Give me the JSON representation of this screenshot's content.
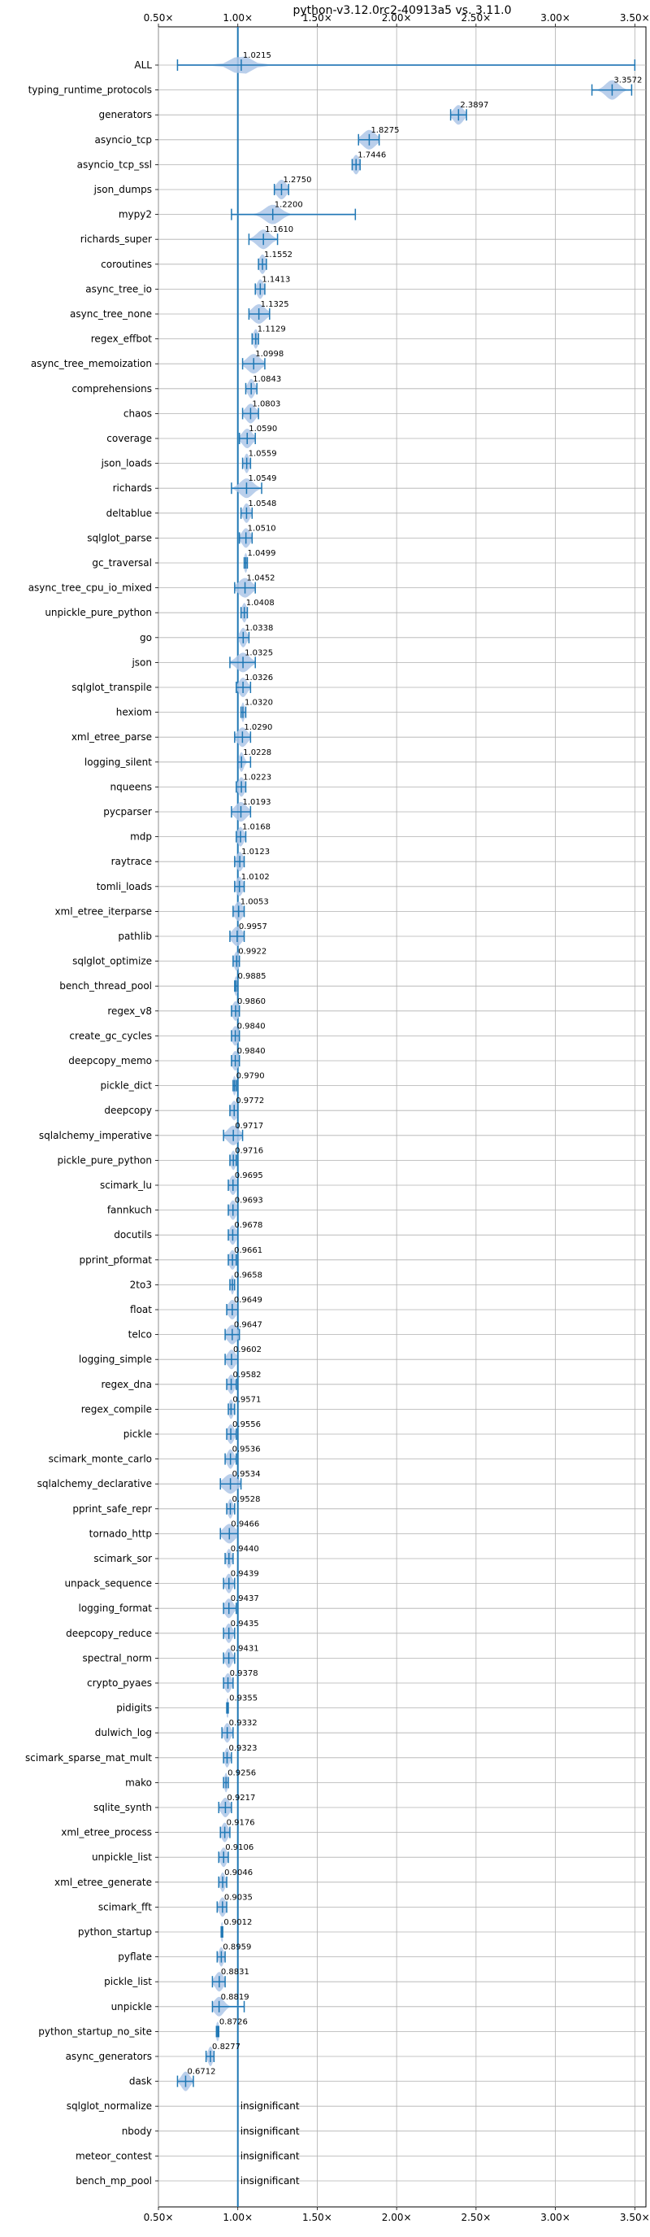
{
  "chart_data": {
    "type": "violin",
    "title": "python-v3.12.0rc2-40913a5 vs. 3.11.0",
    "xlim": [
      0.5,
      3.57
    ],
    "x_ticks": [
      0.5,
      1.0,
      1.5,
      2.0,
      2.5,
      3.0,
      3.5
    ],
    "x_tick_labels": [
      "0.50×",
      "1.00×",
      "1.50×",
      "2.00×",
      "2.50×",
      "3.00×",
      "3.50×"
    ],
    "reference_line": 1.0,
    "grid": true,
    "colors": {
      "line": "#1f77b4",
      "fill": "#aec7e8",
      "grid": "#b0b0b0"
    },
    "benchmarks": [
      {
        "name": "ALL",
        "label": "1.0215",
        "center": 1.0215,
        "min": 0.62,
        "max": 3.5,
        "spread": 0.06
      },
      {
        "name": "typing_runtime_protocols",
        "label": "3.3572",
        "center": 3.3572,
        "min": 3.23,
        "max": 3.48,
        "spread": 0.04
      },
      {
        "name": "generators",
        "label": "2.3897",
        "center": 2.3897,
        "min": 2.34,
        "max": 2.44,
        "spread": 0.03
      },
      {
        "name": "asyncio_tcp",
        "label": "1.8275",
        "center": 1.8275,
        "min": 1.76,
        "max": 1.89,
        "spread": 0.04
      },
      {
        "name": "asyncio_tcp_ssl",
        "label": "1.7446",
        "center": 1.7446,
        "min": 1.72,
        "max": 1.77,
        "spread": 0.02
      },
      {
        "name": "json_dumps",
        "label": "1.2750",
        "center": 1.275,
        "min": 1.23,
        "max": 1.32,
        "spread": 0.03
      },
      {
        "name": "mypy2",
        "label": "1.2200",
        "center": 1.22,
        "min": 0.96,
        "max": 1.74,
        "spread": 0.05
      },
      {
        "name": "richards_super",
        "label": "1.1610",
        "center": 1.161,
        "min": 1.07,
        "max": 1.25,
        "spread": 0.04
      },
      {
        "name": "coroutines",
        "label": "1.1552",
        "center": 1.1552,
        "min": 1.13,
        "max": 1.18,
        "spread": 0.02
      },
      {
        "name": "async_tree_io",
        "label": "1.1413",
        "center": 1.1413,
        "min": 1.11,
        "max": 1.17,
        "spread": 0.02
      },
      {
        "name": "async_tree_none",
        "label": "1.1325",
        "center": 1.1325,
        "min": 1.07,
        "max": 1.2,
        "spread": 0.04
      },
      {
        "name": "regex_effbot",
        "label": "1.1129",
        "center": 1.1129,
        "min": 1.09,
        "max": 1.13,
        "spread": 0.015
      },
      {
        "name": "async_tree_memoization",
        "label": "1.0998",
        "center": 1.0998,
        "min": 1.03,
        "max": 1.17,
        "spread": 0.04
      },
      {
        "name": "comprehensions",
        "label": "1.0843",
        "center": 1.0843,
        "min": 1.05,
        "max": 1.12,
        "spread": 0.02
      },
      {
        "name": "chaos",
        "label": "1.0803",
        "center": 1.0803,
        "min": 1.03,
        "max": 1.13,
        "spread": 0.03
      },
      {
        "name": "coverage",
        "label": "1.0590",
        "center": 1.059,
        "min": 1.01,
        "max": 1.11,
        "spread": 0.03
      },
      {
        "name": "json_loads",
        "label": "1.0559",
        "center": 1.0559,
        "min": 1.03,
        "max": 1.08,
        "spread": 0.015
      },
      {
        "name": "richards",
        "label": "1.0549",
        "center": 1.0549,
        "min": 0.96,
        "max": 1.15,
        "spread": 0.04
      },
      {
        "name": "deltablue",
        "label": "1.0548",
        "center": 1.0548,
        "min": 1.02,
        "max": 1.09,
        "spread": 0.02
      },
      {
        "name": "sqlglot_parse",
        "label": "1.0510",
        "center": 1.051,
        "min": 1.01,
        "max": 1.09,
        "spread": 0.025
      },
      {
        "name": "gc_traversal",
        "label": "1.0499",
        "center": 1.0499,
        "min": 1.04,
        "max": 1.06,
        "spread": 0.008
      },
      {
        "name": "async_tree_cpu_io_mixed",
        "label": "1.0452",
        "center": 1.0452,
        "min": 0.98,
        "max": 1.11,
        "spread": 0.04
      },
      {
        "name": "unpickle_pure_python",
        "label": "1.0408",
        "center": 1.0408,
        "min": 1.02,
        "max": 1.06,
        "spread": 0.015
      },
      {
        "name": "go",
        "label": "1.0338",
        "center": 1.0338,
        "min": 1.0,
        "max": 1.07,
        "spread": 0.02
      },
      {
        "name": "json",
        "label": "1.0325",
        "center": 1.0325,
        "min": 0.95,
        "max": 1.11,
        "spread": 0.04
      },
      {
        "name": "sqlglot_transpile",
        "label": "1.0326",
        "center": 1.0326,
        "min": 0.99,
        "max": 1.08,
        "spread": 0.025
      },
      {
        "name": "hexiom",
        "label": "1.0320",
        "center": 1.032,
        "min": 1.02,
        "max": 1.05,
        "spread": 0.01
      },
      {
        "name": "xml_etree_parse",
        "label": "1.0290",
        "center": 1.029,
        "min": 0.98,
        "max": 1.08,
        "spread": 0.03
      },
      {
        "name": "logging_silent",
        "label": "1.0228",
        "center": 1.0228,
        "min": 1.0,
        "max": 1.08,
        "spread": 0.015
      },
      {
        "name": "nqueens",
        "label": "1.0223",
        "center": 1.0223,
        "min": 0.99,
        "max": 1.05,
        "spread": 0.02
      },
      {
        "name": "pycparser",
        "label": "1.0193",
        "center": 1.0193,
        "min": 0.96,
        "max": 1.08,
        "spread": 0.035
      },
      {
        "name": "mdp",
        "label": "1.0168",
        "center": 1.0168,
        "min": 0.99,
        "max": 1.05,
        "spread": 0.02
      },
      {
        "name": "raytrace",
        "label": "1.0123",
        "center": 1.0123,
        "min": 0.98,
        "max": 1.04,
        "spread": 0.02
      },
      {
        "name": "tomli_loads",
        "label": "1.0102",
        "center": 1.0102,
        "min": 0.98,
        "max": 1.04,
        "spread": 0.02
      },
      {
        "name": "xml_etree_iterparse",
        "label": "1.0053",
        "center": 1.0053,
        "min": 0.97,
        "max": 1.04,
        "spread": 0.025
      },
      {
        "name": "pathlib",
        "label": "0.9957",
        "center": 0.9957,
        "min": 0.95,
        "max": 1.04,
        "spread": 0.03
      },
      {
        "name": "sqlglot_optimize",
        "label": "0.9922",
        "center": 0.9922,
        "min": 0.97,
        "max": 1.01,
        "spread": 0.015
      },
      {
        "name": "bench_thread_pool",
        "label": "0.9885",
        "center": 0.9885,
        "min": 0.98,
        "max": 1.0,
        "spread": 0.008
      },
      {
        "name": "regex_v8",
        "label": "0.9860",
        "center": 0.986,
        "min": 0.96,
        "max": 1.01,
        "spread": 0.02
      },
      {
        "name": "create_gc_cycles",
        "label": "0.9840",
        "center": 0.984,
        "min": 0.96,
        "max": 1.01,
        "spread": 0.02
      },
      {
        "name": "deepcopy_memo",
        "label": "0.9840",
        "center": 0.984,
        "min": 0.96,
        "max": 1.01,
        "spread": 0.02
      },
      {
        "name": "pickle_dict",
        "label": "0.9790",
        "center": 0.979,
        "min": 0.97,
        "max": 0.99,
        "spread": 0.008
      },
      {
        "name": "deepcopy",
        "label": "0.9772",
        "center": 0.9772,
        "min": 0.95,
        "max": 1.0,
        "spread": 0.02
      },
      {
        "name": "sqlalchemy_imperative",
        "label": "0.9717",
        "center": 0.9717,
        "min": 0.91,
        "max": 1.03,
        "spread": 0.035
      },
      {
        "name": "pickle_pure_python",
        "label": "0.9716",
        "center": 0.9716,
        "min": 0.95,
        "max": 0.99,
        "spread": 0.015
      },
      {
        "name": "scimark_lu",
        "label": "0.9695",
        "center": 0.9695,
        "min": 0.94,
        "max": 1.0,
        "spread": 0.02
      },
      {
        "name": "fannkuch",
        "label": "0.9693",
        "center": 0.9693,
        "min": 0.94,
        "max": 1.0,
        "spread": 0.02
      },
      {
        "name": "docutils",
        "label": "0.9678",
        "center": 0.9678,
        "min": 0.94,
        "max": 1.0,
        "spread": 0.02
      },
      {
        "name": "pprint_pformat",
        "label": "0.9661",
        "center": 0.9661,
        "min": 0.94,
        "max": 0.99,
        "spread": 0.02
      },
      {
        "name": "2to3",
        "label": "0.9658",
        "center": 0.9658,
        "min": 0.95,
        "max": 0.98,
        "spread": 0.008
      },
      {
        "name": "float",
        "label": "0.9649",
        "center": 0.9649,
        "min": 0.93,
        "max": 1.0,
        "spread": 0.025
      },
      {
        "name": "telco",
        "label": "0.9647",
        "center": 0.9647,
        "min": 0.92,
        "max": 1.01,
        "spread": 0.03
      },
      {
        "name": "logging_simple",
        "label": "0.9602",
        "center": 0.9602,
        "min": 0.92,
        "max": 1.0,
        "spread": 0.025
      },
      {
        "name": "regex_dna",
        "label": "0.9582",
        "center": 0.9582,
        "min": 0.93,
        "max": 0.99,
        "spread": 0.02
      },
      {
        "name": "regex_compile",
        "label": "0.9571",
        "center": 0.9571,
        "min": 0.94,
        "max": 0.98,
        "spread": 0.015
      },
      {
        "name": "pickle",
        "label": "0.9556",
        "center": 0.9556,
        "min": 0.93,
        "max": 0.99,
        "spread": 0.02
      },
      {
        "name": "scimark_monte_carlo",
        "label": "0.9536",
        "center": 0.9536,
        "min": 0.92,
        "max": 0.99,
        "spread": 0.02
      },
      {
        "name": "sqlalchemy_declarative",
        "label": "0.9534",
        "center": 0.9534,
        "min": 0.89,
        "max": 1.02,
        "spread": 0.04
      },
      {
        "name": "pprint_safe_repr",
        "label": "0.9528",
        "center": 0.9528,
        "min": 0.93,
        "max": 0.98,
        "spread": 0.015
      },
      {
        "name": "tornado_http",
        "label": "0.9466",
        "center": 0.9466,
        "min": 0.89,
        "max": 1.0,
        "spread": 0.035
      },
      {
        "name": "scimark_sor",
        "label": "0.9440",
        "center": 0.944,
        "min": 0.92,
        "max": 0.97,
        "spread": 0.015
      },
      {
        "name": "unpack_sequence",
        "label": "0.9439",
        "center": 0.9439,
        "min": 0.91,
        "max": 0.98,
        "spread": 0.02
      },
      {
        "name": "logging_format",
        "label": "0.9437",
        "center": 0.9437,
        "min": 0.91,
        "max": 0.99,
        "spread": 0.025
      },
      {
        "name": "deepcopy_reduce",
        "label": "0.9435",
        "center": 0.9435,
        "min": 0.91,
        "max": 0.98,
        "spread": 0.02
      },
      {
        "name": "spectral_norm",
        "label": "0.9431",
        "center": 0.9431,
        "min": 0.91,
        "max": 0.98,
        "spread": 0.02
      },
      {
        "name": "crypto_pyaes",
        "label": "0.9378",
        "center": 0.9378,
        "min": 0.91,
        "max": 0.97,
        "spread": 0.02
      },
      {
        "name": "pidigits",
        "label": "0.9355",
        "center": 0.9355,
        "min": 0.93,
        "max": 0.94,
        "spread": 0.005
      },
      {
        "name": "dulwich_log",
        "label": "0.9332",
        "center": 0.9332,
        "min": 0.9,
        "max": 0.97,
        "spread": 0.02
      },
      {
        "name": "scimark_sparse_mat_mult",
        "label": "0.9323",
        "center": 0.9323,
        "min": 0.91,
        "max": 0.96,
        "spread": 0.015
      },
      {
        "name": "mako",
        "label": "0.9256",
        "center": 0.9256,
        "min": 0.91,
        "max": 0.94,
        "spread": 0.01
      },
      {
        "name": "sqlite_synth",
        "label": "0.9217",
        "center": 0.9217,
        "min": 0.88,
        "max": 0.96,
        "spread": 0.025
      },
      {
        "name": "xml_etree_process",
        "label": "0.9176",
        "center": 0.9176,
        "min": 0.89,
        "max": 0.95,
        "spread": 0.02
      },
      {
        "name": "unpickle_list",
        "label": "0.9106",
        "center": 0.9106,
        "min": 0.88,
        "max": 0.94,
        "spread": 0.02
      },
      {
        "name": "xml_etree_generate",
        "label": "0.9046",
        "center": 0.9046,
        "min": 0.88,
        "max": 0.93,
        "spread": 0.015
      },
      {
        "name": "scimark_fft",
        "label": "0.9035",
        "center": 0.9035,
        "min": 0.87,
        "max": 0.93,
        "spread": 0.02
      },
      {
        "name": "python_startup",
        "label": "0.9012",
        "center": 0.9012,
        "min": 0.895,
        "max": 0.905,
        "spread": 0.004
      },
      {
        "name": "pyflate",
        "label": "0.8959",
        "center": 0.8959,
        "min": 0.87,
        "max": 0.92,
        "spread": 0.015
      },
      {
        "name": "pickle_list",
        "label": "0.8831",
        "center": 0.8831,
        "min": 0.84,
        "max": 0.92,
        "spread": 0.025
      },
      {
        "name": "unpickle",
        "label": "0.8819",
        "center": 0.8819,
        "min": 0.84,
        "max": 1.04,
        "spread": 0.03
      },
      {
        "name": "python_startup_no_site",
        "label": "0.8726",
        "center": 0.8726,
        "min": 0.865,
        "max": 0.88,
        "spread": 0.005
      },
      {
        "name": "async_generators",
        "label": "0.8277",
        "center": 0.8277,
        "min": 0.8,
        "max": 0.85,
        "spread": 0.015
      },
      {
        "name": "dask",
        "label": "0.6712",
        "center": 0.6712,
        "min": 0.62,
        "max": 0.72,
        "spread": 0.025
      },
      {
        "name": "sqlglot_normalize",
        "label": "insignificant",
        "center": null
      },
      {
        "name": "nbody",
        "label": "insignificant",
        "center": null
      },
      {
        "name": "meteor_contest",
        "label": "insignificant",
        "center": null
      },
      {
        "name": "bench_mp_pool",
        "label": "insignificant",
        "center": null
      }
    ]
  }
}
